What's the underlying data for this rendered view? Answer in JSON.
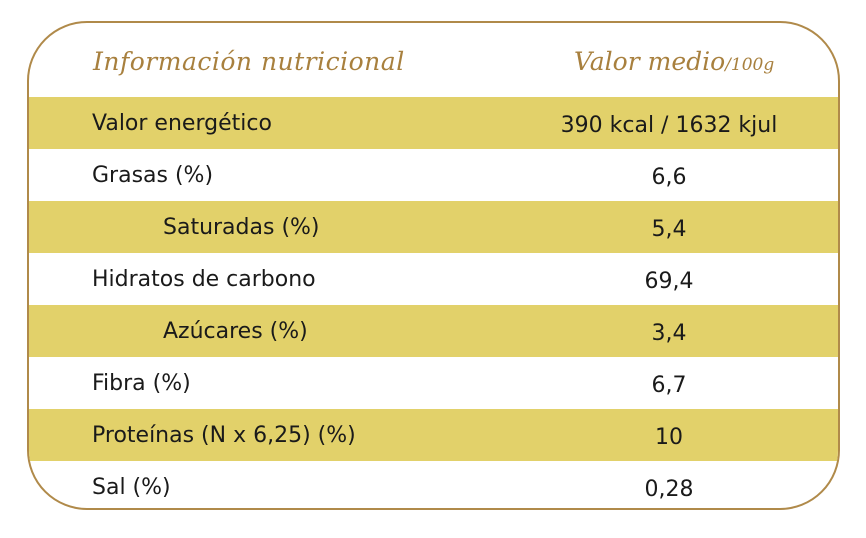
{
  "header": {
    "left_title": "Información nutricional",
    "right_title": "Valor medio",
    "right_unit": "/100g"
  },
  "rows": [
    {
      "label": "Valor energético",
      "value": "390 kcal / 1632 kjul",
      "indent": 0,
      "shaded": true
    },
    {
      "label": "Grasas (%)",
      "value": "6,6",
      "indent": 0,
      "shaded": false
    },
    {
      "label": "Saturadas (%)",
      "value": "5,4",
      "indent": 1,
      "shaded": true
    },
    {
      "label": "Hidratos de carbono",
      "value": "69,4",
      "indent": 0,
      "shaded": false
    },
    {
      "label": "Azúcares (%)",
      "value": "3,4",
      "indent": 1,
      "shaded": true
    },
    {
      "label": "Fibra (%)",
      "value": "6,7",
      "indent": 0,
      "shaded": false
    },
    {
      "label": "Proteínas (N x 6,25) (%)",
      "value": "10",
      "indent": 0,
      "shaded": true
    },
    {
      "label": "Sal (%)",
      "value": "0,28",
      "indent": 0,
      "shaded": false
    }
  ],
  "colors": {
    "border": "#b08a4a",
    "header_text": "#a8803e",
    "row_shade": "#e2d16a",
    "text": "#1a1a1a"
  }
}
